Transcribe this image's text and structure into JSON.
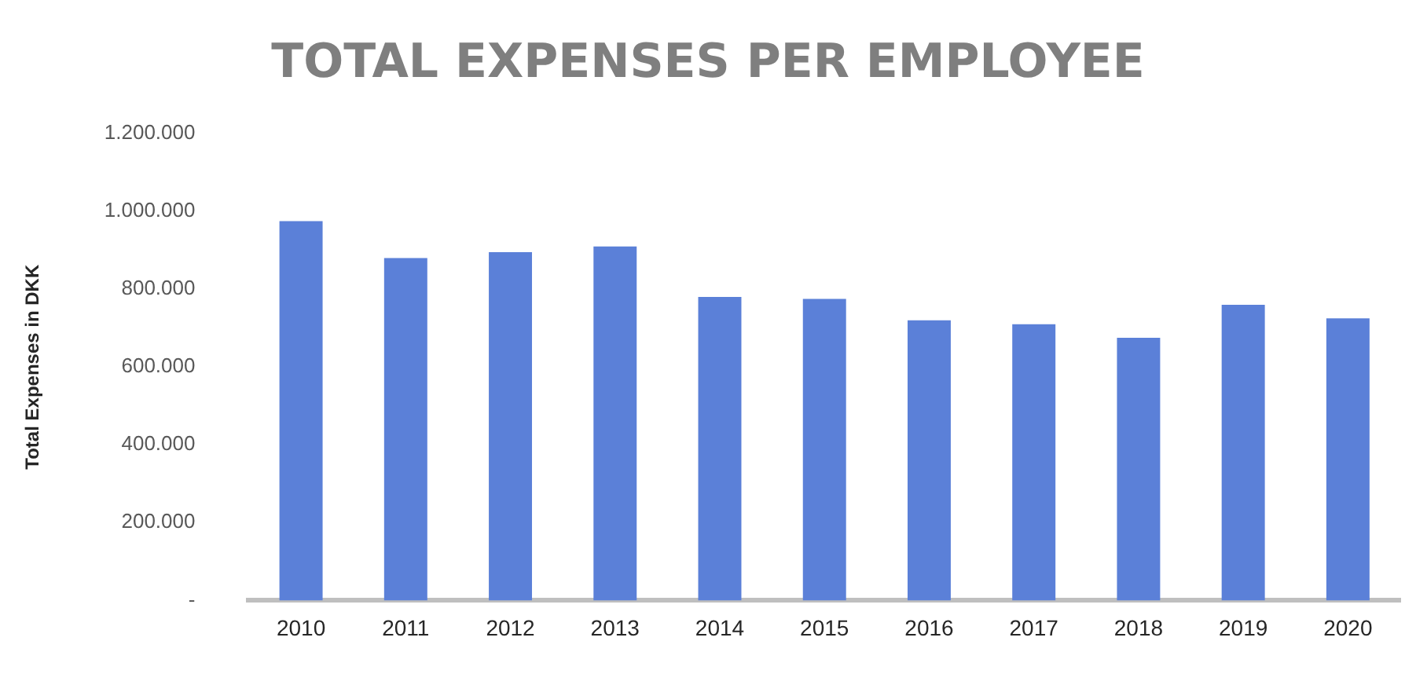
{
  "chart_data": {
    "type": "bar",
    "title": "TOTAL EXPENSES PER EMPLOYEE",
    "ylabel": "Total Expenses in DKK",
    "categories": [
      "2010",
      "2011",
      "2012",
      "2013",
      "2014",
      "2015",
      "2016",
      "2017",
      "2018",
      "2019",
      "2020"
    ],
    "values": [
      975000,
      880000,
      895000,
      910000,
      780000,
      775000,
      720000,
      710000,
      675000,
      760000,
      725000
    ],
    "color": "#5b80d8",
    "ylim": [
      0,
      1200000
    ],
    "yticks": [
      {
        "value": 0,
        "label": "-"
      },
      {
        "value": 200000,
        "label": "200.000"
      },
      {
        "value": 400000,
        "label": "400.000"
      },
      {
        "value": 600000,
        "label": "600.000"
      },
      {
        "value": 800000,
        "label": "800.000"
      },
      {
        "value": 1000000,
        "label": "1.000.000"
      },
      {
        "value": 1200000,
        "label": "1.200.000"
      }
    ],
    "grid": false,
    "legend": false
  }
}
